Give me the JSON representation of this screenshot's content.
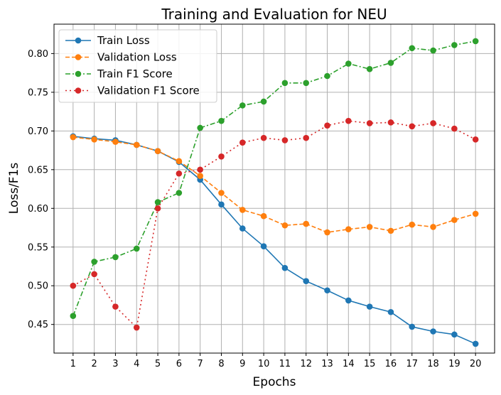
{
  "chart_data": {
    "type": "line",
    "title": "Training and Evaluation for NEU",
    "xlabel": "Epochs",
    "ylabel": "Loss/F1s",
    "x": [
      1,
      2,
      3,
      4,
      5,
      6,
      7,
      8,
      9,
      10,
      11,
      12,
      13,
      14,
      15,
      16,
      17,
      18,
      19,
      20
    ],
    "xlim": [
      0.1,
      20.9
    ],
    "ylim": [
      0.413,
      0.838
    ],
    "yticks": [
      "0.45",
      "0.50",
      "0.55",
      "0.60",
      "0.65",
      "0.70",
      "0.75",
      "0.80"
    ],
    "grid": true,
    "legend_position": "top-left",
    "series": [
      {
        "name": "Train Loss",
        "color": "#1f77b4",
        "linestyle": "solid",
        "values": [
          0.693,
          0.69,
          0.688,
          0.682,
          0.674,
          0.66,
          0.637,
          0.605,
          0.574,
          0.551,
          0.523,
          0.506,
          0.494,
          0.481,
          0.473,
          0.466,
          0.447,
          0.441,
          0.437,
          0.425
        ]
      },
      {
        "name": "Validation Loss",
        "color": "#ff7f0e",
        "linestyle": "dashed",
        "values": [
          0.692,
          0.689,
          0.686,
          0.682,
          0.674,
          0.661,
          0.642,
          0.62,
          0.598,
          0.59,
          0.578,
          0.58,
          0.569,
          0.573,
          0.576,
          0.571,
          0.579,
          0.576,
          0.585,
          0.593
        ]
      },
      {
        "name": "Train F1 Score",
        "color": "#2ca02c",
        "linestyle": "dashdot",
        "values": [
          0.461,
          0.531,
          0.537,
          0.548,
          0.608,
          0.62,
          0.704,
          0.713,
          0.733,
          0.738,
          0.762,
          0.762,
          0.771,
          0.787,
          0.78,
          0.788,
          0.807,
          0.804,
          0.811,
          0.816
        ]
      },
      {
        "name": "Validation F1 Score",
        "color": "#d62728",
        "linestyle": "dotted",
        "values": [
          0.5,
          0.515,
          0.473,
          0.446,
          0.6,
          0.645,
          0.65,
          0.667,
          0.685,
          0.691,
          0.688,
          0.691,
          0.707,
          0.713,
          0.71,
          0.711,
          0.706,
          0.71,
          0.703,
          0.689
        ]
      }
    ]
  }
}
